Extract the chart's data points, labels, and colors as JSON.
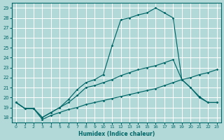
{
  "xlabel": "Humidex (Indice chaleur)",
  "background_color": "#b2d8d8",
  "grid_color": "#c8e8e0",
  "line_color": "#006666",
  "xlim": [
    -0.5,
    23.5
  ],
  "ylim": [
    17.5,
    29.5
  ],
  "xticks": [
    0,
    1,
    2,
    3,
    4,
    5,
    6,
    7,
    8,
    9,
    10,
    11,
    12,
    13,
    14,
    15,
    16,
    17,
    18,
    19,
    20,
    21,
    22,
    23
  ],
  "yticks": [
    18,
    19,
    20,
    21,
    22,
    23,
    24,
    25,
    26,
    27,
    28,
    29
  ],
  "line_peak_x": [
    0,
    1,
    2,
    3,
    4,
    5,
    6,
    7,
    8,
    9,
    10,
    11,
    12,
    13,
    14,
    15,
    16,
    17,
    18,
    19,
    20,
    21,
    22,
    23
  ],
  "line_peak_y": [
    19.5,
    18.9,
    18.9,
    18.0,
    18.5,
    19.0,
    19.8,
    20.8,
    21.5,
    21.8,
    22.3,
    25.2,
    27.8,
    28.0,
    28.3,
    28.5,
    29.0,
    28.5,
    28.0,
    21.8,
    21.0,
    20.1,
    19.5,
    19.5
  ],
  "line_mid_x": [
    0,
    1,
    2,
    3,
    4,
    5,
    6,
    7,
    8,
    9,
    10,
    11,
    12,
    13,
    14,
    15,
    16,
    17,
    18,
    19,
    20,
    21,
    22,
    23
  ],
  "line_mid_y": [
    19.5,
    18.9,
    18.9,
    18.0,
    18.5,
    19.0,
    19.5,
    20.2,
    21.0,
    21.2,
    21.5,
    21.8,
    22.2,
    22.5,
    22.8,
    23.0,
    23.2,
    23.5,
    23.8,
    21.8,
    21.0,
    20.0,
    19.5,
    19.5
  ],
  "line_base_x": [
    0,
    1,
    2,
    3,
    4,
    5,
    6,
    7,
    8,
    9,
    10,
    11,
    12,
    13,
    14,
    15,
    16,
    17,
    18,
    19,
    20,
    21,
    22,
    23
  ],
  "line_base_y": [
    19.5,
    18.9,
    18.9,
    17.8,
    18.2,
    18.5,
    18.8,
    19.0,
    19.3,
    19.5,
    19.7,
    19.9,
    20.1,
    20.3,
    20.5,
    20.7,
    20.9,
    21.2,
    21.5,
    21.8,
    22.0,
    22.3,
    22.5,
    22.8
  ]
}
